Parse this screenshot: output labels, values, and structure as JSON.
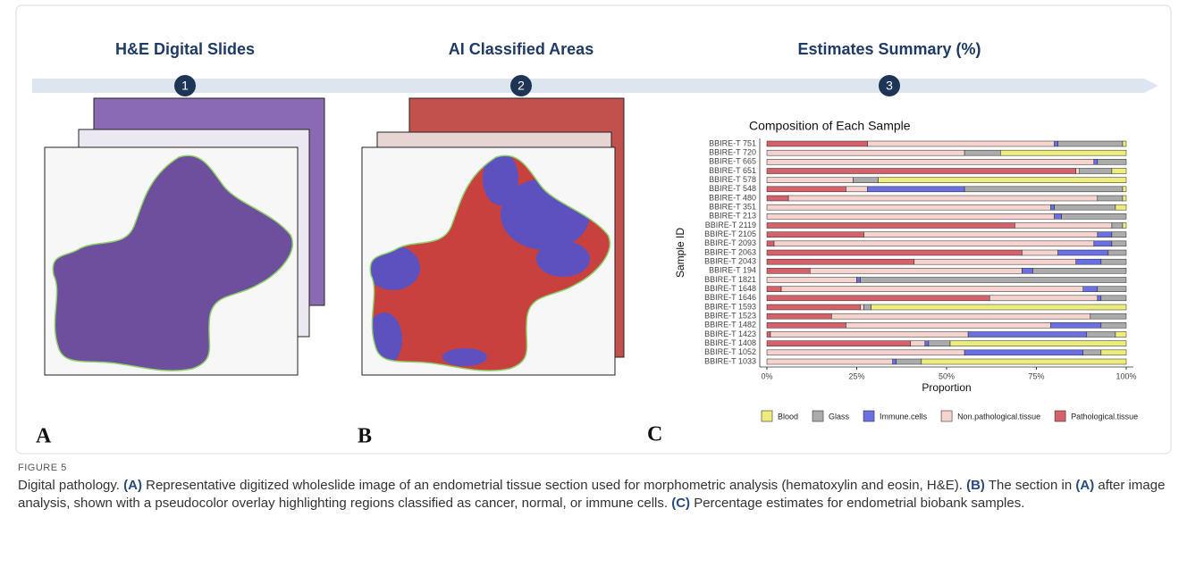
{
  "steps": [
    {
      "number": "1",
      "title": "H&E Digital Slides"
    },
    {
      "number": "2",
      "title": "AI Classified Areas"
    },
    {
      "number": "3",
      "title": "Estimates Summary (%)"
    }
  ],
  "panel_labels": [
    "A",
    "B",
    "C"
  ],
  "caption": {
    "label": "FIGURE 5",
    "parts": [
      "Digital pathology. ",
      "(A)",
      " Representative digitized wholeslide image of an endometrial tissue section used for morphometric analysis (hematoxylin and eosin, H&E). ",
      "(B)",
      " The section in ",
      "(A)",
      " after image analysis, shown with a pseudocolor overlay highlighting regions classified as cancer, normal, or immune cells. ",
      "(C)",
      " Percentage estimates for endometrial biobank samples."
    ]
  },
  "chart_data": {
    "type": "stacked_bar_horizontal",
    "title": "Composition of Each Sample",
    "x_label": "Proportion",
    "y_label": "Sample ID",
    "categories": [
      "BBIRE-T 751",
      "BBIRE-T 720",
      "BBIRE-T 665",
      "BBIRE-T 651",
      "BBIRE-T 578",
      "BBIRE-T 548",
      "BBIRE-T 480",
      "BBIRE-T 351",
      "BBIRE-T 213",
      "BBIRE-T 2119",
      "BBIRE-T 2105",
      "BBIRE-T 2093",
      "BBIRE-T 2063",
      "BBIRE-T 2043",
      "BBIRE-T 194",
      "BBIRE-T 1821",
      "BBIRE-T 1648",
      "BBIRE-T 1646",
      "BBIRE-T 1593",
      "BBIRE-T 1523",
      "BBIRE-T 1482",
      "BBIRE-T 1423",
      "BBIRE-T 1408",
      "BBIRE-T 1052",
      "BBIRE-T 1033"
    ],
    "series": [
      {
        "name": "Blood",
        "color": "#eded7f",
        "values": [
          1,
          35,
          0,
          4,
          69,
          1,
          1,
          3,
          0,
          1,
          0,
          0,
          0,
          0,
          0,
          0,
          0,
          0,
          71,
          0,
          0,
          3,
          49,
          7,
          57
        ]
      },
      {
        "name": "Glass",
        "color": "#ababab",
        "values": [
          18,
          10,
          8,
          9,
          7,
          44,
          7,
          17,
          18,
          3,
          4,
          4,
          5,
          7,
          26,
          74,
          8,
          7,
          2,
          10,
          7,
          8,
          6,
          5,
          7
        ]
      },
      {
        "name": "Immune.cells",
        "color": "#6a6fe4",
        "values": [
          1,
          0,
          1,
          0,
          0,
          27,
          0,
          1,
          2,
          0,
          4,
          5,
          14,
          7,
          3,
          1,
          4,
          1,
          0,
          0,
          14,
          33,
          1,
          33,
          1
        ]
      },
      {
        "name": "Non.pathological.tissue",
        "color": "#f5d4d0",
        "values": [
          52,
          55,
          91,
          1,
          24,
          6,
          86,
          79,
          80,
          27,
          65,
          89,
          10,
          45,
          59,
          25,
          84,
          30,
          1,
          72,
          57,
          55,
          4,
          55,
          35
        ]
      },
      {
        "name": "Pathological.tissue",
        "color": "#d5616a",
        "values": [
          28,
          0,
          0,
          86,
          0,
          22,
          6,
          0,
          0,
          69,
          27,
          2,
          71,
          41,
          12,
          0,
          4,
          62,
          26,
          18,
          22,
          1,
          40,
          0,
          0
        ]
      }
    ],
    "xlim": [
      0,
      100
    ],
    "xticks": [
      {
        "value": 0,
        "label": "0%"
      },
      {
        "value": 25,
        "label": "25%"
      },
      {
        "value": 50,
        "label": "50%"
      },
      {
        "value": 75,
        "label": "75%"
      },
      {
        "value": 100,
        "label": "100%"
      }
    ]
  }
}
